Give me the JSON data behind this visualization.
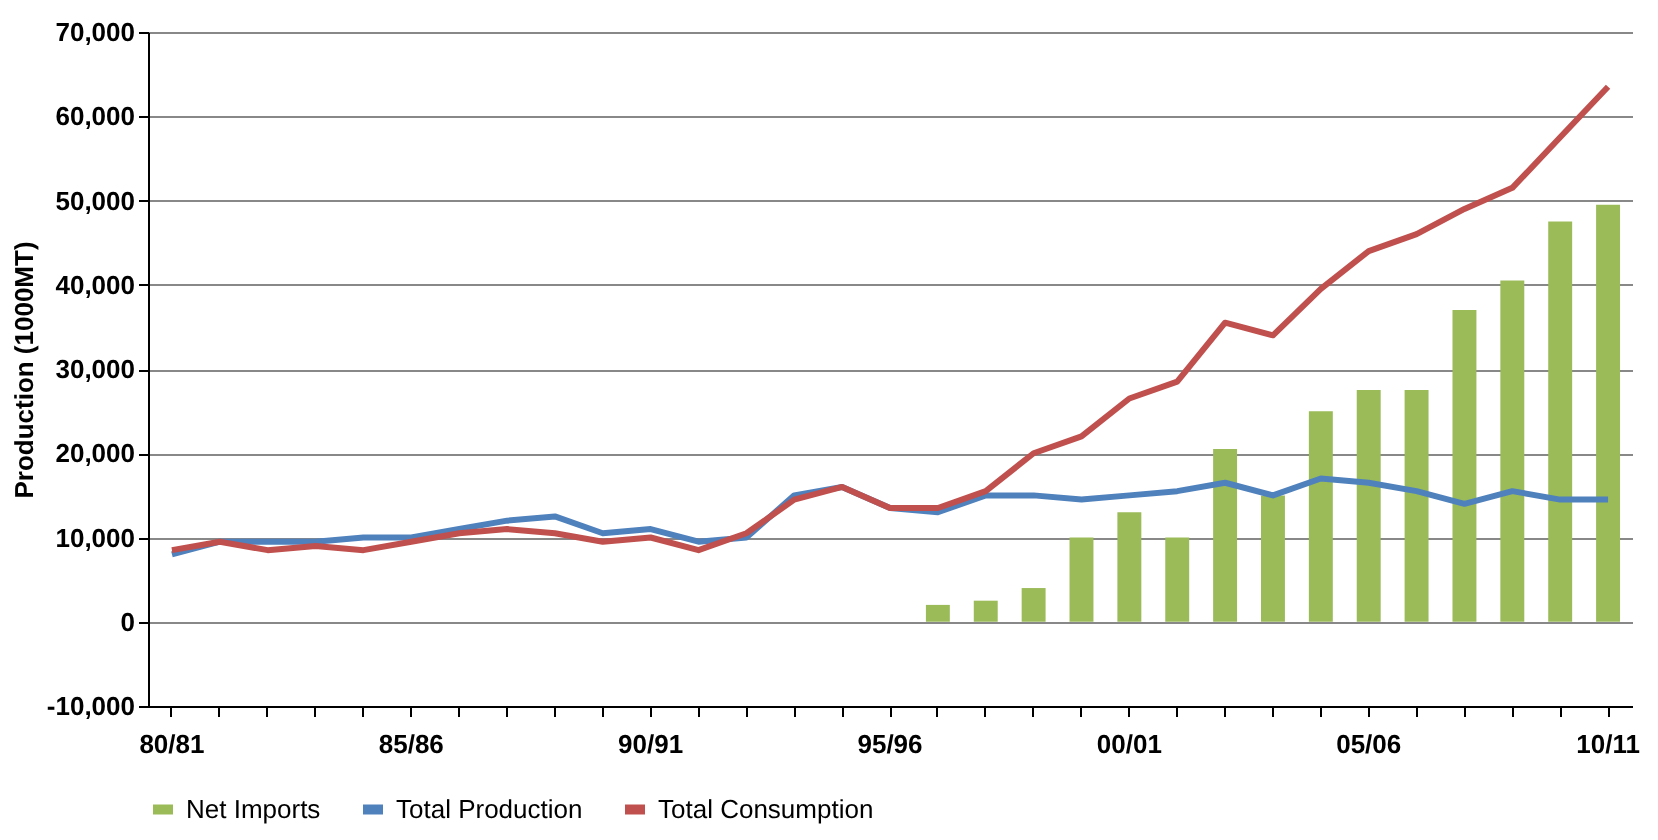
{
  "chart_data": {
    "type": "bar",
    "ylabel": "Production (1000MT)",
    "categories": [
      "80/81",
      null,
      null,
      null,
      null,
      "85/86",
      null,
      null,
      null,
      null,
      "90/91",
      null,
      null,
      null,
      null,
      "95/96",
      null,
      null,
      null,
      null,
      "00/01",
      null,
      null,
      null,
      null,
      "05/06",
      null,
      null,
      null,
      null,
      "10/11"
    ],
    "series": [
      {
        "name": "Net Imports",
        "color": "#9bbb59",
        "values": [
          null,
          null,
          null,
          null,
          null,
          null,
          null,
          null,
          null,
          null,
          null,
          null,
          null,
          null,
          null,
          null,
          2000,
          2500,
          4000,
          10000,
          13000,
          10000,
          20500,
          15000,
          25000,
          27500,
          27500,
          37000,
          40500,
          47500,
          49500
        ]
      },
      {
        "name": "Total Production",
        "type": "line",
        "color": "#4f81bd",
        "values": [
          8000,
          9500,
          9500,
          9500,
          10000,
          10000,
          11000,
          12000,
          12500,
          10500,
          11000,
          9500,
          10000,
          15000,
          16000,
          13500,
          13000,
          15000,
          15000,
          14500,
          15000,
          15500,
          16500,
          15000,
          17000,
          16500,
          15500,
          14000,
          15500,
          14500,
          14500
        ]
      },
      {
        "name": "Total Consumption",
        "type": "line",
        "color": "#c0504d",
        "values": [
          8500,
          9500,
          8500,
          9000,
          8500,
          9500,
          10500,
          11000,
          10500,
          9500,
          10000,
          8500,
          10500,
          14500,
          16000,
          13500,
          13500,
          15500,
          20000,
          22000,
          26500,
          28500,
          35500,
          34000,
          39500,
          44000,
          46000,
          49000,
          51500,
          57500,
          63500
        ]
      }
    ],
    "ylim": [
      -10000,
      70000
    ],
    "yticks": [
      {
        "value": -10000,
        "label": "-10,000"
      },
      0,
      {
        "value": 10000,
        "label": "10,000"
      },
      {
        "value": 20000,
        "label": "20,000"
      },
      {
        "value": 30000,
        "label": "30,000"
      },
      {
        "value": 40000,
        "label": "40,000"
      },
      {
        "value": 50000,
        "label": "50,000"
      },
      {
        "value": 60000,
        "label": "60,000"
      },
      {
        "value": 70000,
        "label": "70,000"
      }
    ],
    "grid": "y",
    "legend": "bottom",
    "line_style": "solid"
  }
}
